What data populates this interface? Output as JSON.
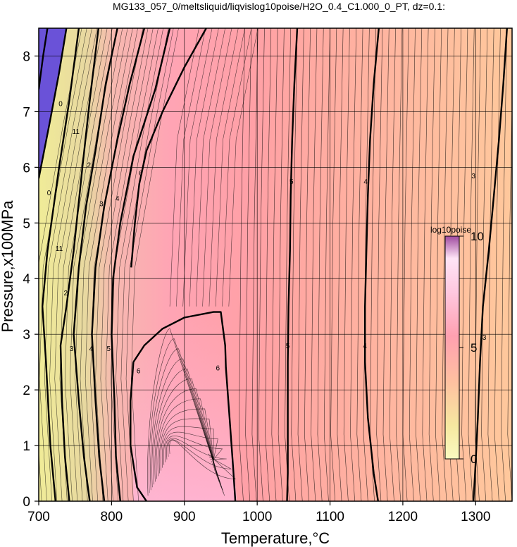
{
  "chart_data": {
    "type": "heatmap",
    "title": "MG133_057_0/meltsliquid/liqvislog10poise/H2O_0.4_C1.000_0_PT, dz=0.1:",
    "xlabel": "Temperature,°C",
    "ylabel": "Pressure,x100MPa",
    "xlim": [
      700,
      1350
    ],
    "ylim": [
      0,
      8.5
    ],
    "xticks": [
      "700",
      "800",
      "900",
      "1000",
      "1100",
      "1200",
      "1300"
    ],
    "yticks": [
      "0",
      "1",
      "2",
      "3",
      "4",
      "5",
      "6",
      "7",
      "8"
    ],
    "grid": true,
    "colorbar": {
      "title": "log10poise",
      "range": [
        0,
        10
      ],
      "ticks": [
        "0",
        "5",
        "10"
      ],
      "placement": "right-inside"
    },
    "colors": {
      "violet": "#6a52d8",
      "yellow": "#f2ee9c",
      "tan": "#ecd6a2",
      "pink_low": "#ffb2c4",
      "pink_mid": "#ff9ea4",
      "peach": "#ffb8a0",
      "orange": "#ffc89c",
      "line": "#000000"
    },
    "contour_labels": [
      {
        "text": "3",
        "T": 1297,
        "P": 5.85
      },
      {
        "text": "3",
        "T": 1312,
        "P": 2.95
      },
      {
        "text": "4",
        "T": 1149,
        "P": 5.75
      },
      {
        "text": "4",
        "T": 1148,
        "P": 2.8
      },
      {
        "text": "5",
        "T": 1047,
        "P": 5.75
      },
      {
        "text": "5",
        "T": 1042,
        "P": 2.8
      },
      {
        "text": "6",
        "T": 946,
        "P": 2.4
      },
      {
        "text": "6",
        "T": 837,
        "P": 2.35
      },
      {
        "text": "6",
        "T": 840,
        "P": 5.9
      },
      {
        "text": "5",
        "T": 796,
        "P": 2.75
      },
      {
        "text": "4",
        "T": 772,
        "P": 2.75
      },
      {
        "text": "3",
        "T": 745,
        "P": 2.75
      },
      {
        "text": "4",
        "T": 808,
        "P": 5.45
      },
      {
        "text": "3",
        "T": 786,
        "P": 5.35
      },
      {
        "text": "2",
        "T": 769,
        "P": 6.05
      },
      {
        "text": "11",
        "T": 751,
        "P": 6.65
      },
      {
        "text": "0",
        "T": 730,
        "P": 7.15
      },
      {
        "text": "0",
        "T": 714,
        "P": 5.55
      },
      {
        "text": "11",
        "T": 728,
        "P": 4.55
      },
      {
        "text": "2",
        "T": 737,
        "P": 3.75
      }
    ],
    "isopleths": [
      {
        "value": 3,
        "thick": true,
        "points": [
          [
            1343,
            8.5
          ],
          [
            1338,
            7.5
          ],
          [
            1332,
            6.5
          ],
          [
            1325,
            5.5
          ],
          [
            1318,
            4.5
          ],
          [
            1310,
            3.5
          ],
          [
            1306,
            2.5
          ],
          [
            1303,
            1.5
          ],
          [
            1300,
            0.7
          ],
          [
            1297,
            0
          ]
        ]
      },
      {
        "value": 4,
        "thick": true,
        "points": [
          [
            1167,
            8.5
          ],
          [
            1160,
            7.5
          ],
          [
            1155,
            6.5
          ],
          [
            1152,
            5.5
          ],
          [
            1150,
            4.5
          ],
          [
            1148,
            3.5
          ],
          [
            1148,
            2.5
          ],
          [
            1152,
            1.5
          ],
          [
            1160,
            0.5
          ],
          [
            1166,
            0
          ]
        ]
      },
      {
        "value": 5,
        "thick": true,
        "points": [
          [
            1055,
            8.5
          ],
          [
            1051,
            7.5
          ],
          [
            1048,
            6.5
          ],
          [
            1046,
            5.5
          ],
          [
            1045,
            4.5
          ],
          [
            1043,
            3.5
          ],
          [
            1042,
            2.5
          ],
          [
            1042,
            1.5
          ],
          [
            1042,
            0.5
          ],
          [
            1041,
            0
          ]
        ]
      },
      {
        "value": 6,
        "thick": true,
        "points": [
          [
            830,
            2.5
          ],
          [
            845,
            2.8
          ],
          [
            870,
            3.1
          ],
          [
            900,
            3.3
          ],
          [
            940,
            3.4
          ],
          [
            950,
            3.4
          ],
          [
            953,
            3.1
          ],
          [
            956,
            2.8
          ],
          [
            957,
            2.4
          ],
          [
            962,
            1.5
          ],
          [
            967,
            0.6
          ],
          [
            970,
            0
          ]
        ]
      },
      {
        "value": 6,
        "thick": true,
        "points": [
          [
            848,
            0
          ],
          [
            835,
            0.25
          ],
          [
            826,
            1.0
          ],
          [
            826,
            1.8
          ],
          [
            830,
            2.5
          ]
        ]
      },
      {
        "value": 6,
        "thick": true,
        "points": [
          [
            930,
            8.5
          ],
          [
            900,
            7.8
          ],
          [
            870,
            7.0
          ],
          [
            848,
            6.3
          ],
          [
            838,
            5.7
          ],
          [
            832,
            5.0
          ],
          [
            827,
            4.2
          ]
        ]
      },
      {
        "value": 5,
        "thick": true,
        "points": [
          [
            812,
            0
          ],
          [
            806,
            0.8
          ],
          [
            804,
            1.8
          ],
          [
            800,
            3.0
          ],
          [
            802,
            4.0
          ],
          [
            812,
            5.0
          ],
          [
            830,
            6.2
          ],
          [
            860,
            7.4
          ],
          [
            880,
            8.5
          ]
        ]
      },
      {
        "value": 4,
        "thick": true,
        "points": [
          [
            790,
            0
          ],
          [
            783,
            0.8
          ],
          [
            778,
            1.8
          ],
          [
            773,
            3.0
          ],
          [
            778,
            4.2
          ],
          [
            790,
            5.3
          ],
          [
            808,
            6.5
          ],
          [
            825,
            7.5
          ],
          [
            845,
            8.5
          ]
        ]
      },
      {
        "value": 3,
        "thick": true,
        "points": [
          [
            770,
            0
          ],
          [
            762,
            0.8
          ],
          [
            755,
            1.8
          ],
          [
            748,
            3.0
          ],
          [
            755,
            4.2
          ],
          [
            765,
            5.3
          ],
          [
            778,
            6.3
          ],
          [
            792,
            7.5
          ],
          [
            808,
            8.5
          ]
        ]
      },
      {
        "value": 2,
        "thick": true,
        "points": [
          [
            742,
            0
          ],
          [
            736,
            0.8
          ],
          [
            732,
            1.8
          ],
          [
            730,
            2.8
          ],
          [
            738,
            3.5
          ],
          [
            748,
            4.5
          ],
          [
            760,
            6.0
          ],
          [
            770,
            7.2
          ],
          [
            782,
            8.5
          ]
        ]
      },
      {
        "value": 1,
        "thick": true,
        "points": [
          [
            723,
            0
          ],
          [
            716,
            1.0
          ],
          [
            710,
            2.5
          ],
          [
            705,
            3.5
          ],
          [
            712,
            4.5
          ],
          [
            728,
            6.0
          ],
          [
            742,
            7.2
          ],
          [
            755,
            8.5
          ]
        ]
      },
      {
        "value": 0,
        "thick": true,
        "points": [
          [
            700,
            5.8
          ],
          [
            715,
            6.8
          ],
          [
            728,
            7.7
          ],
          [
            738,
            8.5
          ]
        ]
      },
      {
        "value": 0,
        "thick": true,
        "points": [
          [
            700,
            7.4
          ],
          [
            706,
            8.0
          ],
          [
            712,
            8.5
          ]
        ]
      }
    ]
  }
}
